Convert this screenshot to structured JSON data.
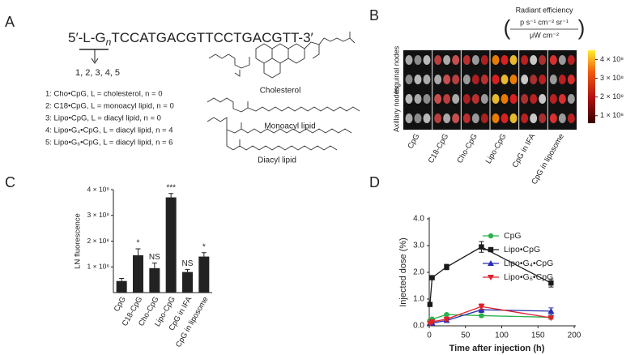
{
  "panels": {
    "a": "A",
    "b": "B",
    "c": "C",
    "d": "D"
  },
  "panel_a": {
    "sequence": {
      "prefix": "5′-L-G",
      "subscript": "n",
      "suffix": "TCCATGACGTTCCTGACGTT-3′"
    },
    "arrow_label": "1, 2, 3, 4, 5",
    "compounds": [
      "1: Cho•CpG, L = cholesterol, n = 0",
      "2: C18•CpG, L = monoacyl lipid, n = 0",
      "3: Lipo•CpG, L = diacyl lipid, n = 0",
      "4: Lipo•G₄•CpG, L = diacyl lipid, n = 4",
      "5: Lipo•G₆•CpG, L = diacyl lipid, n = 6"
    ],
    "structures": [
      "Cholesterol",
      "Monoacyl lipid",
      "Diacyl lipid"
    ]
  },
  "panel_b": {
    "colorbar_title": "Radiant efficiency",
    "colorbar_units_numerator": "p s⁻¹ cm⁻² sr⁻¹",
    "colorbar_units_denominator": "μW cm⁻²",
    "clim": [
      60000000,
      450000000
    ],
    "colorbar_ticks": [
      {
        "value": 400000000,
        "label": "4 × 10⁸"
      },
      {
        "value": 300000000,
        "label": "3 × 10⁸"
      },
      {
        "value": 200000000,
        "label": "2 × 10⁸"
      },
      {
        "value": 100000000,
        "label": "1 × 10⁸"
      }
    ],
    "row_labels": [
      "Inguinal nodes",
      "Axillary nodes"
    ],
    "columns": [
      "CpG",
      "C18-CpG",
      "Cho-CpG",
      "Lipo-CpG",
      "CpG in IFA",
      "CpG in liposome"
    ]
  },
  "chart_data": [
    {
      "type": "bar",
      "y_label": "LN fluorescence",
      "categories": [
        "CpG",
        "C18-CpG",
        "Cho-CpG",
        "Lipo-CpG",
        "CpG in IFA",
        "CpG in liposome"
      ],
      "values": [
        45000000,
        145000000,
        95000000,
        370000000,
        80000000,
        140000000
      ],
      "errors": [
        10000000,
        25000000,
        20000000,
        15000000,
        10000000,
        15000000
      ],
      "annotations": [
        null,
        "*",
        "NS",
        "***",
        "NS",
        "*"
      ],
      "color": "#222222",
      "ylim": [
        0,
        400000000
      ],
      "yticks": [
        {
          "value": 100000000,
          "label": "1 × 10⁸"
        },
        {
          "value": 200000000,
          "label": "2 × 10⁸"
        },
        {
          "value": 300000000,
          "label": "3 × 10⁸"
        },
        {
          "value": 400000000,
          "label": "4 × 10⁸"
        }
      ]
    },
    {
      "type": "line",
      "x_label": "Time after injection (h)",
      "y_label": "Injected dose (%)",
      "x": [
        1,
        4,
        24,
        72,
        168
      ],
      "series": [
        {
          "name": "CpG",
          "color": "#2bb04a",
          "marker": "circle",
          "values": [
            0.2,
            0.25,
            0.42,
            0.38,
            0.32
          ],
          "errors": [
            0.03,
            0.03,
            0.04,
            0.05,
            0.05
          ]
        },
        {
          "name": "Lipo•CpG",
          "color": "#1a1a1a",
          "marker": "square",
          "values": [
            0.8,
            1.8,
            2.2,
            2.95,
            1.6
          ],
          "errors": [
            0.05,
            0.06,
            0.1,
            0.2,
            0.15
          ]
        },
        {
          "name": "Lipo•G₄•CpG",
          "color": "#2a2fb0",
          "marker": "triangle-up",
          "values": [
            0.1,
            0.1,
            0.2,
            0.6,
            0.55
          ],
          "errors": [
            0.03,
            0.03,
            0.05,
            0.1,
            0.12
          ]
        },
        {
          "name": "Lipo•G₆•CpG",
          "color": "#e0202a",
          "marker": "triangle-down",
          "values": [
            0.1,
            0.15,
            0.25,
            0.72,
            0.3
          ],
          "errors": [
            0.03,
            0.03,
            0.05,
            0.1,
            0.05
          ]
        }
      ],
      "xlim": [
        0,
        200
      ],
      "xticks": [
        0,
        50,
        100,
        150,
        200
      ],
      "ylim": [
        0,
        4
      ],
      "yticks": [
        {
          "value": 0,
          "label": "0.0"
        },
        {
          "value": 1,
          "label": "1.0"
        },
        {
          "value": 2,
          "label": "2.0"
        },
        {
          "value": 3,
          "label": "3.0"
        },
        {
          "value": 4,
          "label": "4.0"
        }
      ],
      "legend": "upper right"
    }
  ]
}
